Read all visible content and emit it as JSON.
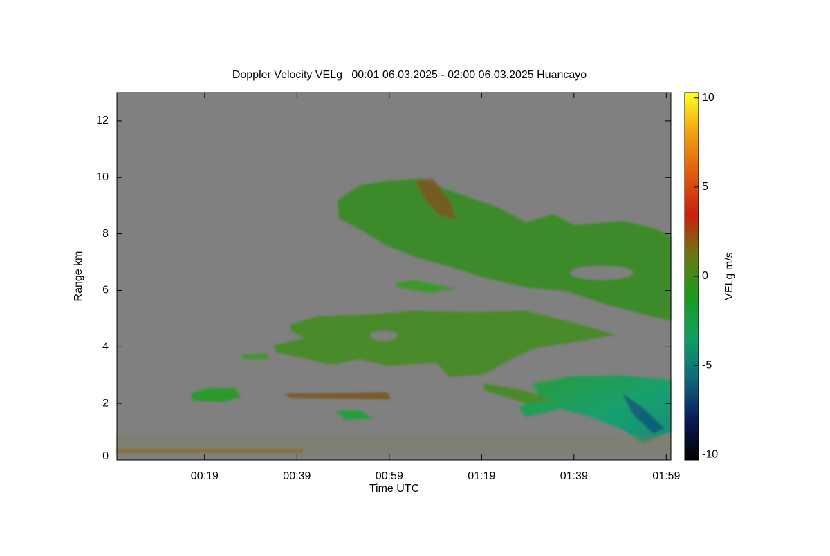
{
  "chart_data": {
    "type": "heatmap",
    "title": "Doppler Velocity VELg   00:01 06.03.2025 - 02:00 06.03.2025 Huancayo",
    "x_label": "Time UTC",
    "y_label": "Range km",
    "xlim": [
      0,
      120
    ],
    "xticks": [
      {
        "value": 19,
        "label": "00:19"
      },
      {
        "value": 39,
        "label": "00:39"
      },
      {
        "value": 59,
        "label": "00:59"
      },
      {
        "value": 79,
        "label": "01:19"
      },
      {
        "value": 99,
        "label": "01:39"
      },
      {
        "value": 119,
        "label": "01:59"
      }
    ],
    "ylim": [
      0,
      13
    ],
    "yticks": [
      0,
      2,
      4,
      6,
      8,
      10,
      12
    ],
    "colorbar": {
      "label": "VELg m/s",
      "lim": [
        -10.3,
        10.3
      ],
      "ticks": [
        -10,
        -5,
        0,
        5,
        10
      ],
      "colormap": [
        "#000000",
        "#0a1a5a",
        "#0f6a7a",
        "#10a060",
        "#1a9a20",
        "#6a7a10",
        "#c82010",
        "#e05a10",
        "#f0a010",
        "#ffff20"
      ]
    },
    "background": "#808080"
  }
}
